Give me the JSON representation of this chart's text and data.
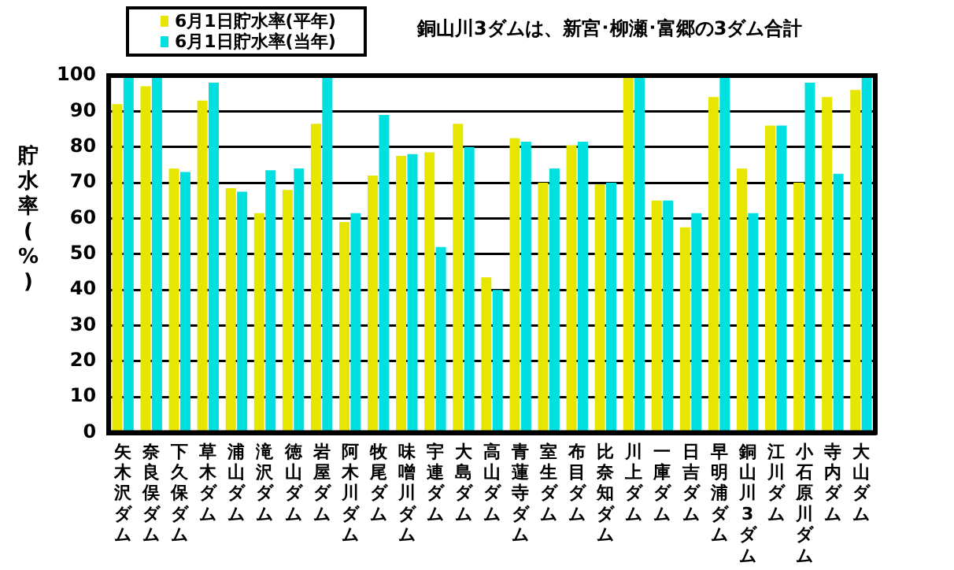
{
  "chart_data": {
    "type": "bar",
    "title": "銅山川3ダムは、新宮･柳瀬･富郷の3ダム合計",
    "ylabel": "貯水率(%)",
    "categories": [
      "矢木沢ダム",
      "奈良俣ダム",
      "下久保ダム",
      "草木ダム",
      "浦山ダム",
      "滝沢ダム",
      "徳山ダム",
      "岩屋ダム",
      "阿木川ダム",
      "牧尾ダム",
      "味噌川ダム",
      "宇連ダム",
      "大島ダム",
      "高山ダム",
      "青蓮寺ダム",
      "室生ダム",
      "布目ダム",
      "比奈知ダム",
      "川上ダム",
      "一庫ダム",
      "日吉ダム",
      "早明浦ダム",
      "銅山川3ダム",
      "江川ダム",
      "小石原川ダム",
      "寺内ダム",
      "大山ダム"
    ],
    "series": [
      {
        "name": "6月1日貯水率(平年)",
        "color": "#e6e600",
        "values": [
          92,
          97,
          74,
          93,
          68.5,
          61.5,
          68,
          86.5,
          59,
          72,
          77.5,
          78.5,
          86.5,
          43.5,
          82.5,
          70,
          80.5,
          69.5,
          100,
          65,
          57.5,
          94,
          74,
          86,
          70,
          94,
          96
        ]
      },
      {
        "name": "6月1日貯水率(当年)",
        "color": "#00e0e0",
        "values": [
          100,
          100,
          73,
          98,
          67.5,
          73.5,
          74,
          100,
          61.5,
          89,
          78,
          52,
          80,
          40,
          81.5,
          74,
          81.5,
          70,
          100,
          65,
          61.5,
          100,
          61.5,
          86,
          98,
          72.5,
          100
        ]
      }
    ],
    "ylim": [
      0,
      100
    ],
    "yticks": [
      0,
      10,
      20,
      30,
      40,
      50,
      60,
      70,
      80,
      90,
      100
    ],
    "grid": "y",
    "legend": "top left"
  }
}
